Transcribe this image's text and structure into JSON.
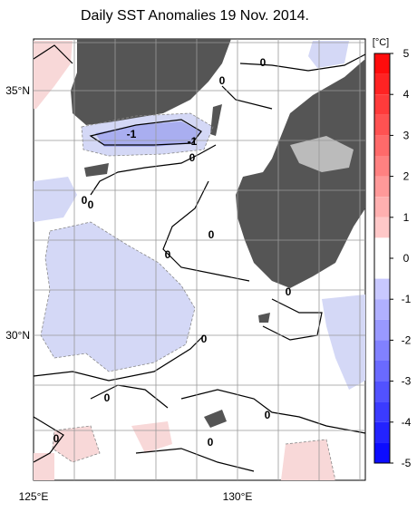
{
  "header": {
    "title": "Daily SST Anomalies 19 Nov. 2014."
  },
  "axes": {
    "lat_labels": [
      "35°N",
      "30°N"
    ],
    "lon_labels": [
      "125°E",
      "130°E"
    ]
  },
  "colorbar": {
    "unit": "[°C]",
    "range": [
      -5,
      5
    ],
    "ticks": [
      5,
      4,
      3,
      2,
      1,
      0,
      -1,
      -2,
      -3,
      -4,
      -5
    ]
  },
  "contour_labels": [
    "0",
    "-1",
    "-1",
    "0",
    "0",
    "0",
    "0",
    "0",
    "0",
    "0",
    "0",
    "0",
    "0",
    "0",
    "0"
  ]
}
